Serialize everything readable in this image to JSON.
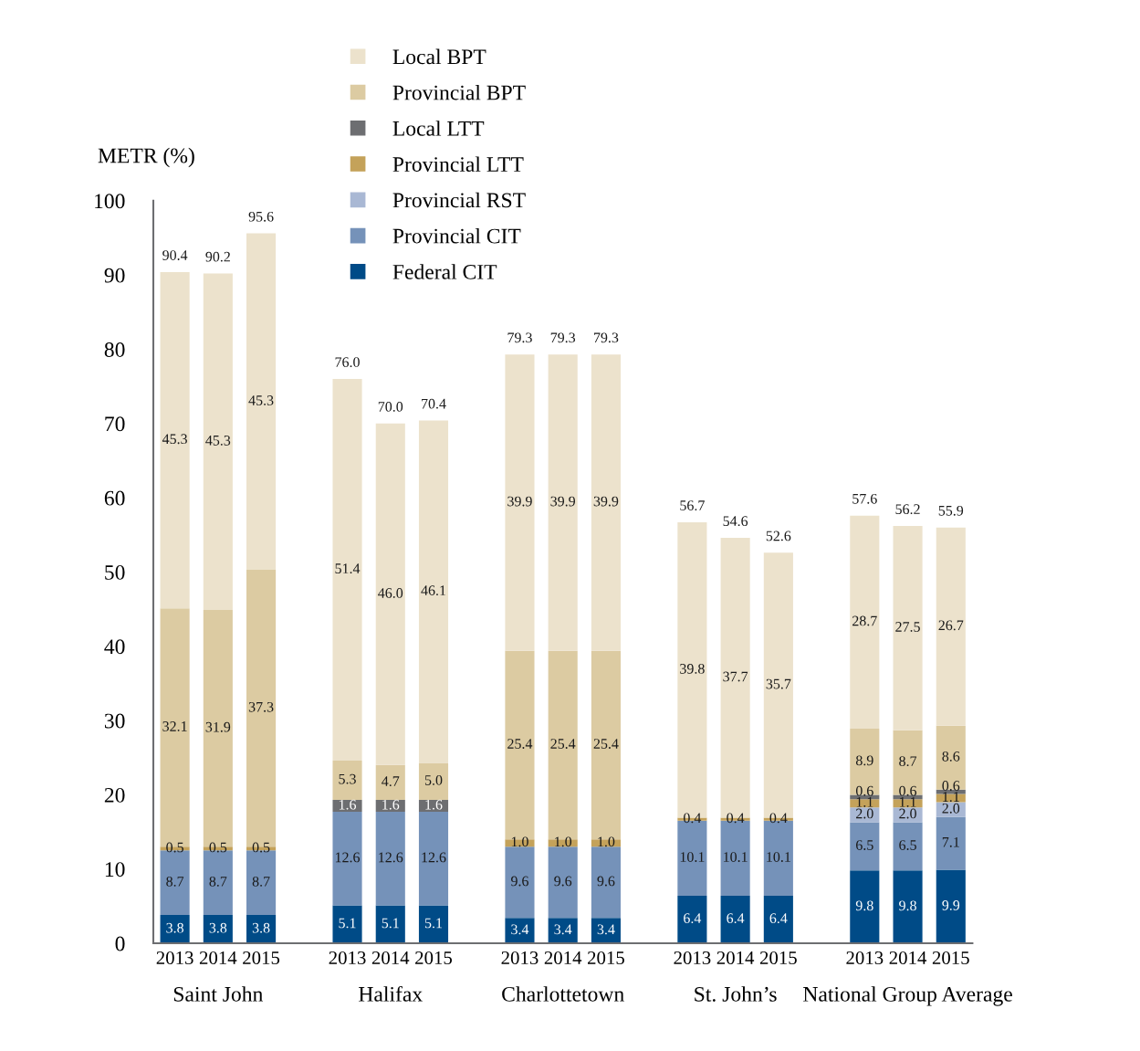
{
  "chart_data": {
    "type": "bar",
    "stacked": true,
    "ylabel": "METR (%)",
    "categories": [
      "2013",
      "2014",
      "2015",
      null,
      "2013",
      "2014",
      "2015",
      null,
      "2013",
      "2014",
      "2015",
      null,
      "2013",
      "2014",
      "2015",
      null,
      "2013",
      "2014",
      "2015"
    ],
    "series": [
      {
        "name": "Federal CIT",
        "color": "#004b87",
        "values": [
          3.8,
          3.8,
          3.8,
          null,
          5.1,
          5.1,
          5.1,
          null,
          3.4,
          3.4,
          3.4,
          null,
          6.4,
          6.4,
          6.4,
          null,
          9.8,
          9.8,
          9.9
        ],
        "value_labels": [
          "3.8",
          "3.8",
          "3.8",
          null,
          "5.1",
          "5.1",
          "5.1",
          null,
          "3.4",
          "3.4",
          "3.4",
          null,
          "6.4",
          "6.4",
          "6.4",
          null,
          "9.8",
          "9.8",
          "9.9"
        ]
      },
      {
        "name": "Provincial CIT",
        "color": "#7592b9",
        "values": [
          8.7,
          8.7,
          8.7,
          null,
          12.6,
          12.6,
          12.6,
          null,
          9.6,
          9.6,
          9.6,
          null,
          10.1,
          10.1,
          10.1,
          null,
          6.5,
          6.5,
          7.1
        ],
        "value_labels": [
          "8.7",
          "8.7",
          "8.7",
          null,
          "12.6",
          "12.6",
          "12.6",
          null,
          "9.6",
          "9.6",
          "9.6",
          null,
          "10.1",
          "10.1",
          "10.1",
          null,
          "6.5",
          "6.5",
          "7.1"
        ]
      },
      {
        "name": "Provincial RST",
        "color": "#a9b8d4",
        "values": [
          null,
          null,
          null,
          null,
          null,
          null,
          null,
          null,
          null,
          null,
          null,
          null,
          null,
          null,
          null,
          null,
          2.0,
          2.0,
          2.0
        ],
        "value_labels": [
          null,
          null,
          null,
          null,
          null,
          null,
          null,
          null,
          null,
          null,
          null,
          null,
          null,
          null,
          null,
          null,
          "2.0",
          "2.0",
          "2.0"
        ]
      },
      {
        "name": "Provincial LTT",
        "color": "#c4a25a",
        "values": [
          0.5,
          0.5,
          0.5,
          null,
          null,
          null,
          null,
          null,
          1.0,
          1.0,
          1.0,
          null,
          0.4,
          0.4,
          0.4,
          null,
          1.1,
          1.1,
          1.1
        ],
        "value_labels": [
          "0.5",
          "0.5",
          "0.5",
          null,
          null,
          null,
          null,
          null,
          "1.0",
          "1.0",
          "1.0",
          null,
          "0.4",
          "0.4",
          "0.4",
          null,
          "1.1",
          "1.1",
          "1.1"
        ]
      },
      {
        "name": "Local LTT",
        "color": "#6d6e71",
        "values": [
          null,
          null,
          null,
          null,
          1.6,
          1.6,
          1.6,
          null,
          null,
          null,
          null,
          null,
          null,
          null,
          null,
          null,
          0.6,
          0.6,
          0.6
        ],
        "value_labels": [
          null,
          null,
          null,
          null,
          "1.6",
          "1.6",
          "1.6",
          null,
          null,
          null,
          null,
          null,
          null,
          null,
          null,
          null,
          "0.6",
          "0.6",
          "0.6"
        ]
      },
      {
        "name": "Provincial BPT",
        "color": "#dccba2",
        "values": [
          32.1,
          31.9,
          37.3,
          null,
          5.3,
          4.7,
          5.0,
          null,
          25.4,
          25.4,
          25.4,
          null,
          null,
          null,
          null,
          null,
          8.9,
          8.7,
          8.6
        ],
        "value_labels": [
          "32.1",
          "31.9",
          "37.3",
          null,
          "5.3",
          "4.7",
          "5.0",
          null,
          "25.4",
          "25.4",
          "25.4",
          null,
          null,
          null,
          null,
          null,
          "8.9",
          "8.7",
          "8.6"
        ]
      },
      {
        "name": "Local BPT",
        "color": "#ece2cc",
        "values": [
          45.3,
          45.3,
          45.3,
          null,
          51.4,
          46.0,
          46.1,
          null,
          39.9,
          39.9,
          39.9,
          null,
          39.8,
          37.7,
          35.7,
          null,
          28.7,
          27.5,
          26.7
        ],
        "value_labels": [
          "45.3",
          "45.3",
          "45.3",
          null,
          "51.4",
          "46.0",
          "46.1",
          null,
          "39.9",
          "39.9",
          "39.9",
          null,
          "39.8",
          "37.7",
          "35.7",
          null,
          "28.7",
          "27.5",
          "26.7"
        ]
      }
    ],
    "totals": [
      "90.4",
      "90.2",
      "95.6",
      null,
      "76.0",
      "70.0",
      "70.4",
      null,
      "79.3",
      "79.3",
      "79.3",
      null,
      "56.7",
      "54.6",
      "52.6",
      null,
      "57.6",
      "56.2",
      "55.9"
    ],
    "annotations": [
      "Saint John",
      "Halifax",
      "Charlottetown",
      "St. John’s",
      "National Group Average"
    ],
    "ylim": [
      0,
      100
    ],
    "yticks": [
      0,
      10,
      20,
      30,
      40,
      50,
      60,
      70,
      80,
      90,
      100
    ],
    "grid": false,
    "legend": "top"
  }
}
